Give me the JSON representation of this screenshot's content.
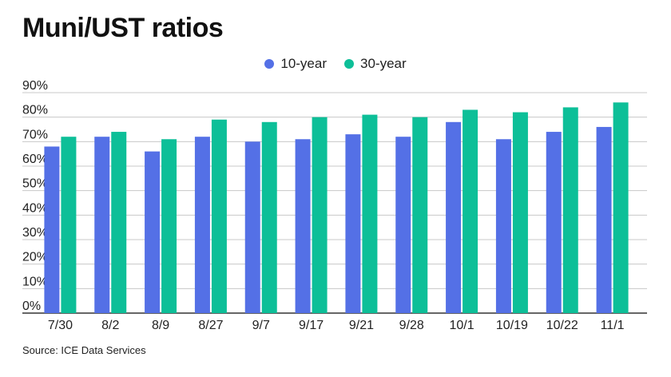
{
  "title": "Muni/UST ratios",
  "source": "Source: ICE Data Services",
  "colors": {
    "ten_year": "#5470e6",
    "thirty_year": "#0dbf98",
    "grid": "#c8c8c8",
    "axis": "#333333"
  },
  "chart_data": {
    "type": "bar",
    "title": "Muni/UST ratios",
    "xlabel": "",
    "ylabel": "",
    "categories": [
      "7/30",
      "8/2",
      "8/9",
      "8/27",
      "9/7",
      "9/17",
      "9/21",
      "9/28",
      "10/1",
      "10/19",
      "10/22",
      "11/1"
    ],
    "series": [
      {
        "name": "10-year",
        "values": [
          68,
          72,
          66,
          72,
          70,
          71,
          73,
          72,
          78,
          71,
          74,
          76
        ]
      },
      {
        "name": "30-year",
        "values": [
          72,
          74,
          71,
          79,
          78,
          80,
          81,
          80,
          83,
          82,
          84,
          86
        ]
      }
    ],
    "ylim": [
      0,
      90
    ],
    "yticks": [
      "0%",
      "10%",
      "20%",
      "30%",
      "40%",
      "50%",
      "60%",
      "70%",
      "80%",
      "90%"
    ],
    "grid": true,
    "legend": "top-center"
  }
}
